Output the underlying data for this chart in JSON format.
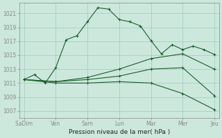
{
  "xlabel": "Pression niveau de la mer( hPa )",
  "background_color": "#cce8dd",
  "grid_color": "#99ccbb",
  "line_color": "#1a5c28",
  "xlabels": [
    "Sa​Dim",
    "Ven",
    "Sam",
    "Lun",
    "Mar",
    "Mer",
    "Jeu"
  ],
  "xtick_positions": [
    0,
    1,
    2,
    3,
    4,
    5,
    6
  ],
  "ylim": [
    1006.0,
    1022.5
  ],
  "yticks": [
    1007,
    1009,
    1011,
    1013,
    1015,
    1017,
    1019,
    1021
  ],
  "lines": [
    {
      "x": [
        0,
        0.33,
        0.67,
        1.0,
        1.33,
        1.67,
        2.0,
        2.33,
        2.67,
        3.0,
        3.33,
        3.67,
        4.0,
        4.33,
        4.67,
        5.0,
        5.33,
        5.67,
        6.0
      ],
      "y": [
        1011.5,
        1012.2,
        1011.0,
        1013.2,
        1017.2,
        1017.8,
        1019.8,
        1021.8,
        1021.6,
        1020.1,
        1019.8,
        1019.2,
        1017.1,
        1015.2,
        1016.5,
        1015.8,
        1016.3,
        1015.8,
        1015.1
      ]
    },
    {
      "x": [
        0,
        1,
        2,
        3,
        4,
        5,
        6
      ],
      "y": [
        1011.5,
        1011.2,
        1011.8,
        1013.0,
        1014.5,
        1015.2,
        1013.0
      ]
    },
    {
      "x": [
        0,
        1,
        2,
        3,
        4,
        5,
        6
      ],
      "y": [
        1011.5,
        1011.2,
        1011.5,
        1012.0,
        1013.0,
        1013.2,
        1009.2
      ]
    },
    {
      "x": [
        0,
        1,
        2,
        3,
        4,
        5,
        6
      ],
      "y": [
        1011.5,
        1011.0,
        1011.0,
        1011.2,
        1011.0,
        1009.5,
        1007.2
      ]
    }
  ]
}
